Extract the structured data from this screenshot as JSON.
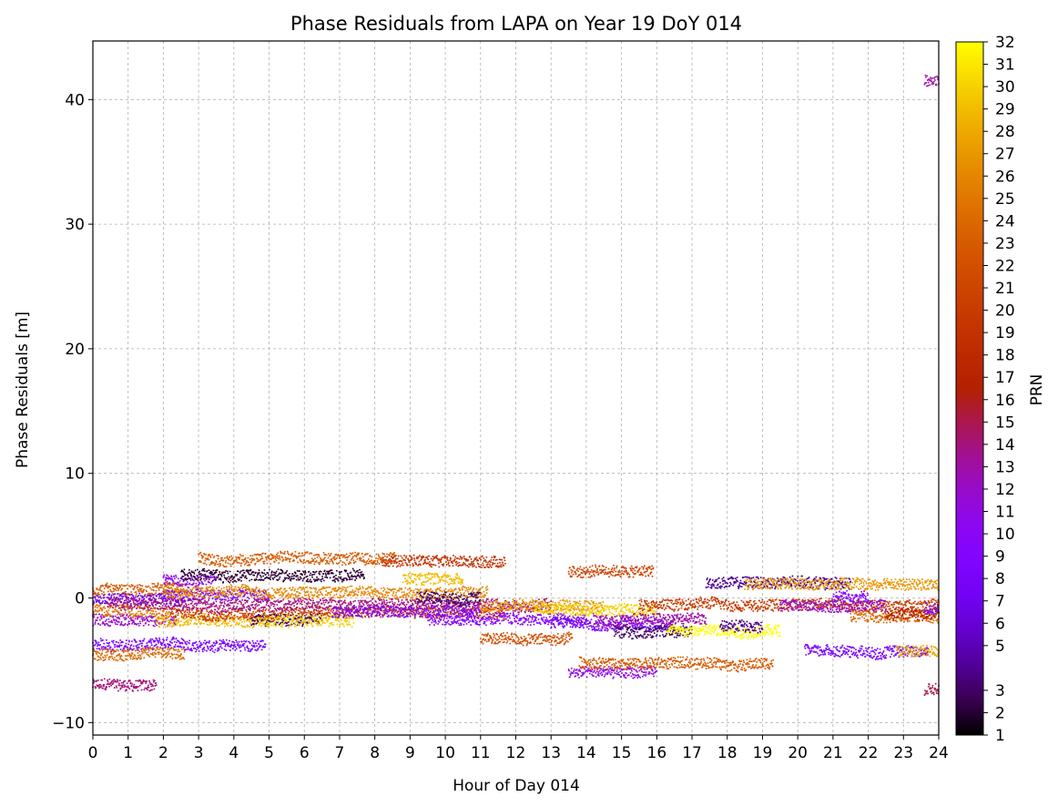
{
  "chart_data": {
    "type": "scatter",
    "title": "Phase Residuals from LAPA on Year 19 DoY 014",
    "xlabel": "Hour of Day 014",
    "ylabel": "Phase Residuals [m]",
    "xlim": [
      0,
      24
    ],
    "ylim": [
      -11,
      44.7
    ],
    "x_ticks": [
      0,
      1,
      2,
      3,
      4,
      5,
      6,
      7,
      8,
      9,
      10,
      11,
      12,
      13,
      14,
      15,
      16,
      17,
      18,
      19,
      20,
      21,
      22,
      23,
      24
    ],
    "y_ticks": [
      -10,
      0,
      10,
      20,
      30,
      40
    ],
    "grid": true,
    "colorbar": {
      "label": "PRN",
      "colormap": "gnuplot",
      "range": [
        1,
        32
      ],
      "ticks": [
        1,
        2,
        3,
        5,
        6,
        7,
        8,
        9,
        10,
        11,
        12,
        13,
        14,
        15,
        16,
        17,
        18,
        19,
        20,
        21,
        22,
        23,
        24,
        25,
        26,
        27,
        28,
        29,
        30,
        31,
        32
      ]
    },
    "series": [
      {
        "prn": 14,
        "x": [
          0.0,
          1.8
        ],
        "y": -7.0
      },
      {
        "prn": 8,
        "x": [
          0.0,
          4.9
        ],
        "y": -3.8
      },
      {
        "prn": 24,
        "x": [
          0.0,
          2.6
        ],
        "y": -4.5
      },
      {
        "prn": 12,
        "x": [
          0.0,
          2.4
        ],
        "y": -1.8
      },
      {
        "prn": 23,
        "x": [
          0.0,
          2.6
        ],
        "y": 0.7
      },
      {
        "prn": 7,
        "x": [
          0.0,
          2.6
        ],
        "y": -0.3
      },
      {
        "prn": 25,
        "x": [
          0.0,
          2.2
        ],
        "y": -1.0
      },
      {
        "prn": 9,
        "x": [
          2.0,
          5.0
        ],
        "y": 0.2
      },
      {
        "prn": 11,
        "x": [
          2.0,
          3.5
        ],
        "y": 1.5
      },
      {
        "prn": 29,
        "x": [
          1.8,
          5.0
        ],
        "y": -1.8
      },
      {
        "prn": 2,
        "x": [
          2.5,
          7.7
        ],
        "y": 1.8
      },
      {
        "prn": 23,
        "x": [
          3.0,
          8.6
        ],
        "y": 3.2
      },
      {
        "prn": 20,
        "x": [
          2.2,
          11.7
        ],
        "y": -1.2
      },
      {
        "prn": 14,
        "x": [
          0.4,
          13.0
        ],
        "y": -0.5
      },
      {
        "prn": 26,
        "x": [
          2.0,
          11.2
        ],
        "y": 0.5
      },
      {
        "prn": 3,
        "x": [
          4.5,
          6.5
        ],
        "y": -1.8
      },
      {
        "prn": 30,
        "x": [
          4.7,
          7.4
        ],
        "y": -1.8
      },
      {
        "prn": 9,
        "x": [
          6.8,
          11.0
        ],
        "y": -1.2
      },
      {
        "prn": 19,
        "x": [
          8.2,
          11.7
        ],
        "y": 3.0
      },
      {
        "prn": 29,
        "x": [
          8.8,
          10.5
        ],
        "y": 1.5
      },
      {
        "prn": 3,
        "x": [
          9.2,
          11.0
        ],
        "y": 0.1
      },
      {
        "prn": 10,
        "x": [
          9.5,
          14.0
        ],
        "y": -1.7
      },
      {
        "prn": 22,
        "x": [
          11.0,
          13.6
        ],
        "y": -3.3
      },
      {
        "prn": 27,
        "x": [
          11.0,
          14.5
        ],
        "y": -0.6
      },
      {
        "prn": 30,
        "x": [
          12.5,
          16.0
        ],
        "y": -0.9
      },
      {
        "prn": 8,
        "x": [
          13.0,
          16.5
        ],
        "y": -2.0
      },
      {
        "prn": 21,
        "x": [
          13.5,
          15.9
        ],
        "y": 2.1
      },
      {
        "prn": 11,
        "x": [
          13.5,
          16.0
        ],
        "y": -6.0
      },
      {
        "prn": 23,
        "x": [
          13.8,
          19.3
        ],
        "y": -5.2
      },
      {
        "prn": 3,
        "x": [
          14.8,
          17.0
        ],
        "y": -2.7
      },
      {
        "prn": 13,
        "x": [
          14.2,
          17.4
        ],
        "y": -1.7
      },
      {
        "prn": 32,
        "x": [
          16.3,
          19.5
        ],
        "y": -2.6
      },
      {
        "prn": 20,
        "x": [
          15.5,
          24.0
        ],
        "y": -0.5
      },
      {
        "prn": 4,
        "x": [
          17.4,
          21.5
        ],
        "y": 1.2
      },
      {
        "prn": 4,
        "x": [
          17.8,
          19.0
        ],
        "y": -2.3
      },
      {
        "prn": 27,
        "x": [
          18.5,
          24.0
        ],
        "y": 1.0
      },
      {
        "prn": 12,
        "x": [
          19.5,
          22.5
        ],
        "y": -0.6
      },
      {
        "prn": 8,
        "x": [
          20.2,
          23.7
        ],
        "y": -4.2
      },
      {
        "prn": 9,
        "x": [
          21.0,
          22.0
        ],
        "y": 0.1
      },
      {
        "prn": 24,
        "x": [
          21.5,
          24.0
        ],
        "y": -1.5
      },
      {
        "prn": 28,
        "x": [
          22.8,
          24.0
        ],
        "y": -4.3
      },
      {
        "prn": 17,
        "x": [
          22.5,
          24.0
        ],
        "y": -1.3
      },
      {
        "prn": 8,
        "x": [
          23.6,
          24.0
        ],
        "y": -0.8
      },
      {
        "prn": 13,
        "x": [
          23.6,
          24.0
        ],
        "y": 41.5
      },
      {
        "prn": 15,
        "x": [
          23.6,
          24.0
        ],
        "y": -7.4
      }
    ]
  }
}
